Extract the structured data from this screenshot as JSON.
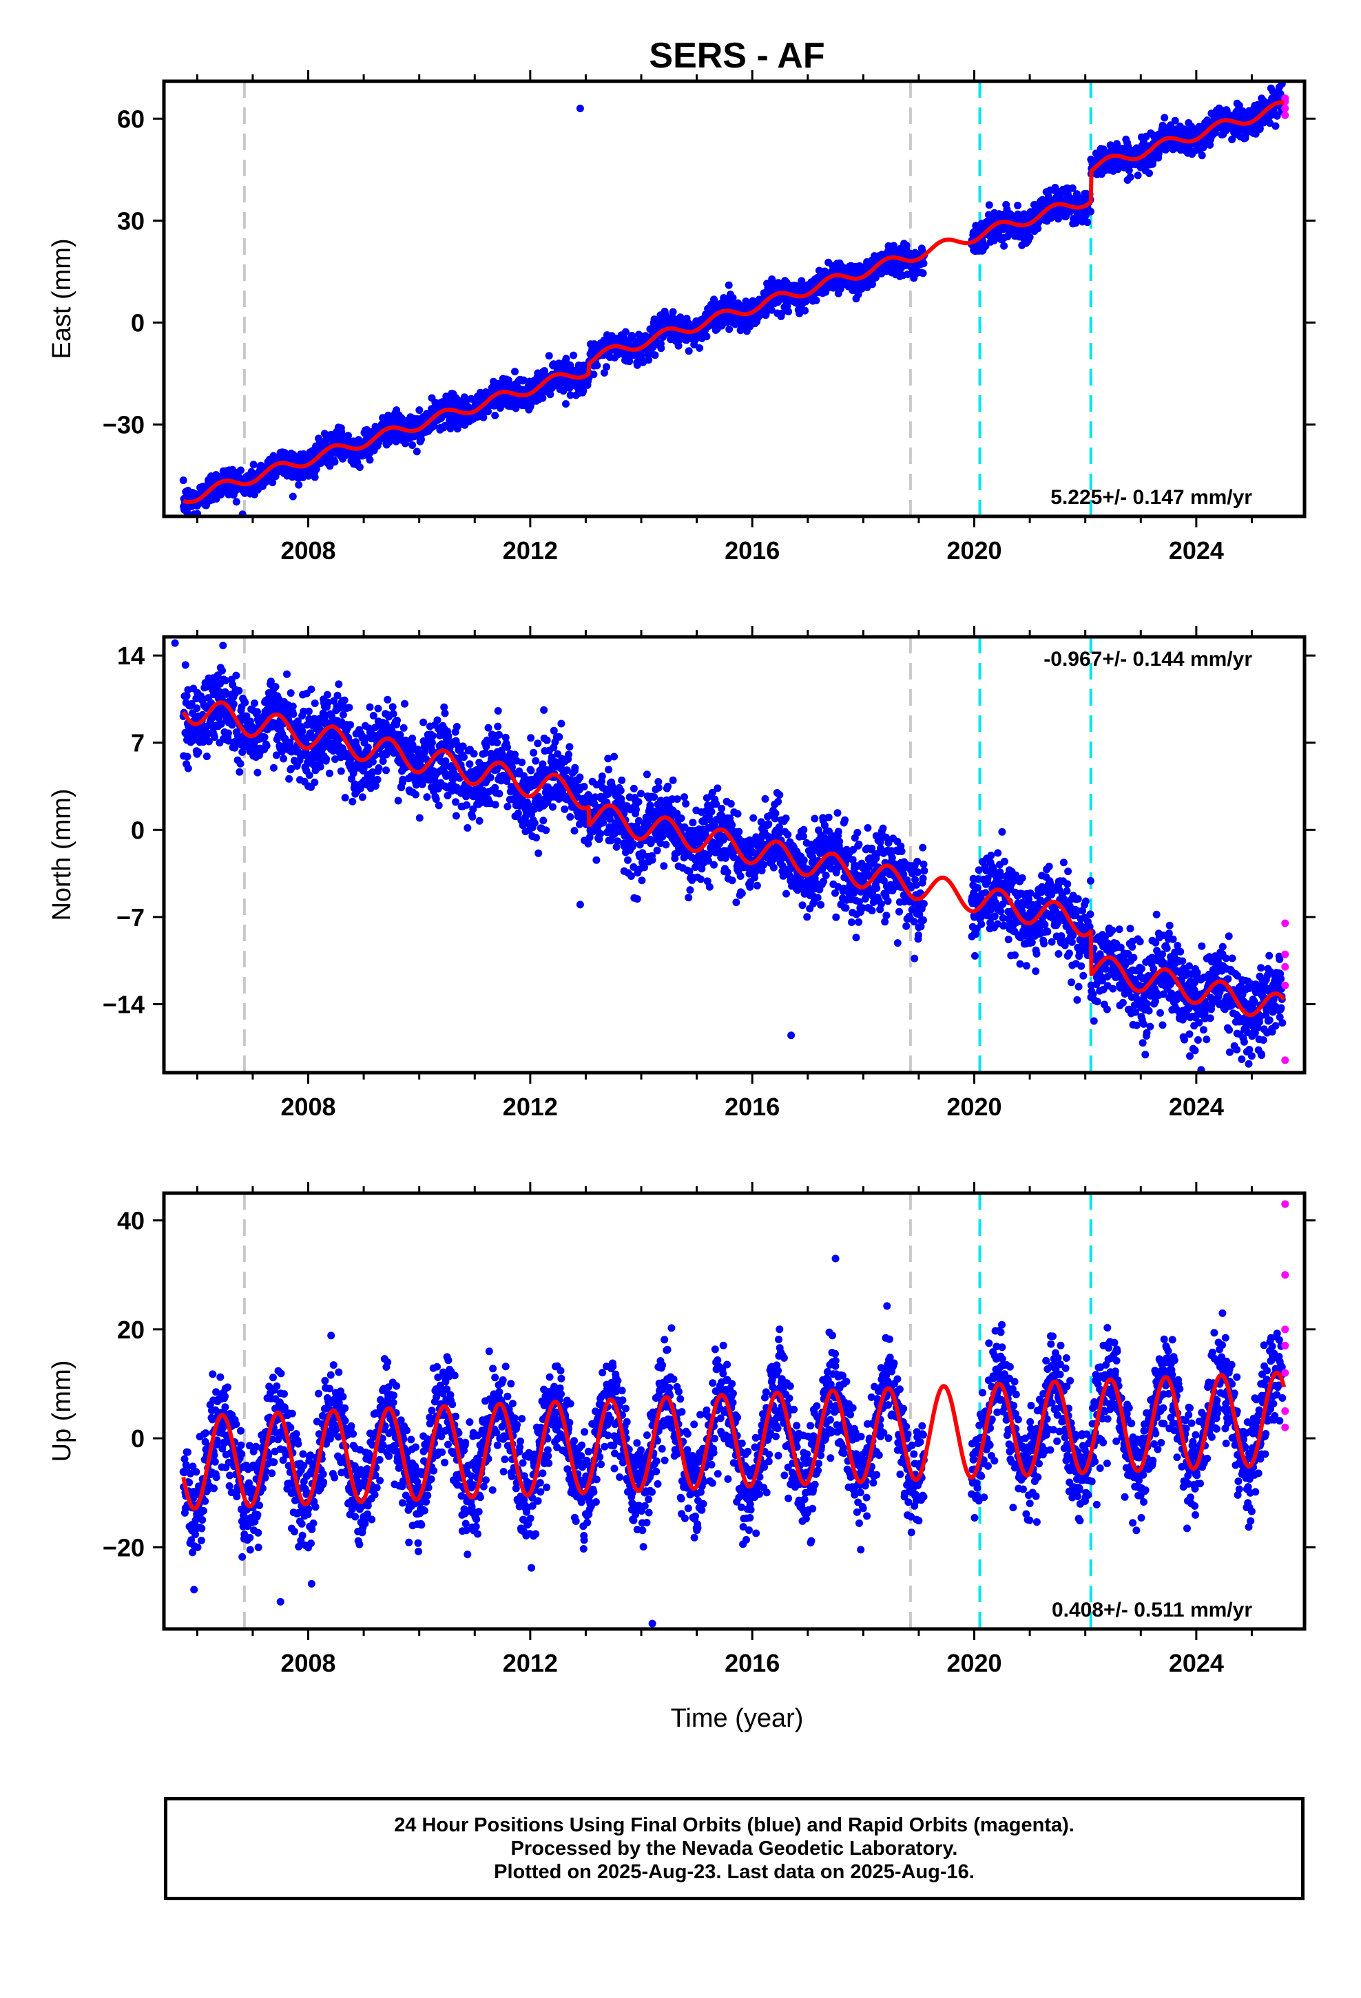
{
  "title": "SERS - AF",
  "xlabel": "Time (year)",
  "colors": {
    "final_orbits": "#0000ff",
    "rapid_orbits": "#ff00ff",
    "model": "#ff0000",
    "antenna_change": "#c8c8c8",
    "earthquake": "#00e5ee"
  },
  "chart_data": [
    {
      "type": "scatter",
      "id": "east",
      "ylabel": "East (mm)",
      "xlim": [
        2005.4,
        2025.95
      ],
      "ylim": [
        -57,
        71
      ],
      "xticks": [
        2008,
        2012,
        2016,
        2020,
        2024
      ],
      "yticks": [
        -30,
        0,
        30,
        60
      ],
      "rate_text": "5.225+/- 0.147 mm/yr",
      "rate": 5.225,
      "seasonal_amplitude": 1.6,
      "gap": [
        2019.1,
        2019.95
      ],
      "offsets": [
        {
          "year": 2013.05,
          "mm": 3.0
        },
        {
          "year": 2022.1,
          "mm": 9.0
        }
      ],
      "series_start": [
        2005.75,
        -52
      ],
      "rapid_points": [
        {
          "x": 2025.6,
          "y": 61
        },
        {
          "x": 2025.6,
          "y": 63
        },
        {
          "x": 2025.6,
          "y": 65
        },
        {
          "x": 2025.6,
          "y": 66
        }
      ],
      "outliers": [
        {
          "x": 2012.9,
          "y": 63
        }
      ]
    },
    {
      "type": "scatter",
      "id": "north",
      "ylabel": "North (mm)",
      "xlim": [
        2005.4,
        2025.95
      ],
      "ylim": [
        -19.5,
        15.5
      ],
      "xticks": [
        2008,
        2012,
        2016,
        2020,
        2024
      ],
      "yticks": [
        -14,
        -7,
        0,
        7,
        14
      ],
      "rate_text": "-0.967+/- 0.144 mm/yr",
      "rate": -0.967,
      "seasonal_amplitude": 1.1,
      "gap": [
        2019.1,
        2019.95
      ],
      "offsets": [
        {
          "year": 2013.05,
          "mm": -1.5
        },
        {
          "year": 2022.1,
          "mm": -3.5
        }
      ],
      "series_start": [
        2005.75,
        9.8
      ],
      "rapid_points": [
        {
          "x": 2025.6,
          "y": -7.5
        },
        {
          "x": 2025.6,
          "y": -10
        },
        {
          "x": 2025.6,
          "y": -11
        },
        {
          "x": 2025.6,
          "y": -12.5
        },
        {
          "x": 2025.6,
          "y": -18.5
        }
      ],
      "outliers": [
        {
          "x": 2005.6,
          "y": 15
        },
        {
          "x": 2016.7,
          "y": -16.5
        },
        {
          "x": 2012.9,
          "y": -6
        }
      ]
    },
    {
      "type": "scatter",
      "id": "up",
      "ylabel": "Up (mm)",
      "xlim": [
        2005.4,
        2025.95
      ],
      "ylim": [
        -35,
        45
      ],
      "xticks": [
        2008,
        2012,
        2016,
        2020,
        2024
      ],
      "yticks": [
        -20,
        0,
        20,
        40
      ],
      "rate_text": "0.408+/- 0.511 mm/yr",
      "rate": 0.408,
      "seasonal_amplitude": 8.5,
      "gap": [
        2019.1,
        2019.95
      ],
      "offsets": [],
      "series_start": [
        2005.75,
        -4.5
      ],
      "rapid_points": [
        {
          "x": 2025.6,
          "y": 43
        },
        {
          "x": 2025.6,
          "y": 30
        },
        {
          "x": 2025.6,
          "y": 20
        },
        {
          "x": 2025.6,
          "y": 17
        },
        {
          "x": 2025.6,
          "y": 12
        },
        {
          "x": 2025.6,
          "y": 5
        },
        {
          "x": 2025.6,
          "y": 2
        }
      ],
      "outliers": [
        {
          "x": 2017.5,
          "y": 33
        },
        {
          "x": 2014.2,
          "y": -34
        },
        {
          "x": 2007.5,
          "y": -30
        }
      ]
    }
  ],
  "event_lines": {
    "antenna_change": [
      2006.85,
      2018.85
    ],
    "earthquake": [
      2020.1,
      2022.1
    ]
  },
  "caption": {
    "line1": "24 Hour Positions Using Final Orbits (blue) and Rapid Orbits (magenta).",
    "line2": "Processed by the Nevada Geodetic Laboratory.",
    "line3": "Plotted on 2025-Aug-23. Last data on 2025-Aug-16."
  }
}
